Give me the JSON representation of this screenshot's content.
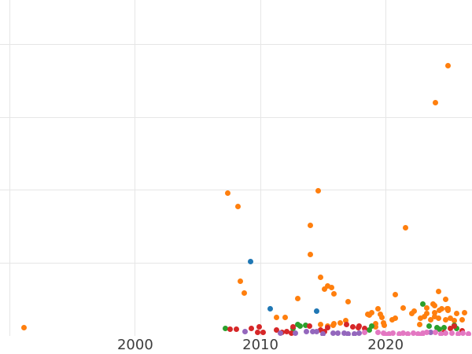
{
  "chart_data": {
    "type": "scatter",
    "title": "",
    "xlabel": "",
    "ylabel": "",
    "xlim": [
      1989.2,
      2026.9
    ],
    "ylim": [
      0,
      4.616
    ],
    "grid": true,
    "legend_position": "none",
    "background_color": "#ffffff",
    "gridline_color": "#e6e6e6",
    "tick_label_color": "#3d3d3d",
    "x_gridlines": [
      1990,
      2000,
      2010,
      2020
    ],
    "y_gridlines": [
      0,
      1,
      2,
      3,
      4
    ],
    "x_ticks": [
      {
        "year": 2000,
        "label": "2000"
      },
      {
        "year": 2010,
        "label": "2010"
      },
      {
        "year": 2020,
        "label": "2020"
      }
    ],
    "series": [
      {
        "name": "series-blue",
        "color": "#1f77b4",
        "points": [
          [
            2009.2,
            1.02
          ],
          [
            2010.8,
            0.37
          ],
          [
            2014.5,
            0.34
          ]
        ]
      },
      {
        "name": "series-orange",
        "color": "#ff7f0e",
        "points": [
          [
            1991.1,
            0.11
          ],
          [
            2025.0,
            3.71
          ],
          [
            2024.0,
            3.2
          ],
          [
            2007.4,
            1.96
          ],
          [
            2008.2,
            1.78
          ],
          [
            2008.4,
            0.75
          ],
          [
            2008.7,
            0.59
          ],
          [
            2013.0,
            0.51
          ],
          [
            2014.6,
            1.99
          ],
          [
            2014.0,
            1.52
          ],
          [
            2014.0,
            1.12
          ],
          [
            2014.8,
            0.81
          ],
          [
            2015.1,
            0.64
          ],
          [
            2015.4,
            0.69
          ],
          [
            2015.7,
            0.67
          ],
          [
            2015.9,
            0.58
          ],
          [
            2017.0,
            0.47
          ],
          [
            2021.6,
            1.49
          ],
          [
            2020.8,
            0.57
          ],
          [
            2024.2,
            0.61
          ],
          [
            2024.8,
            0.5
          ],
          [
            2023.8,
            0.44
          ],
          [
            2021.4,
            0.38
          ],
          [
            2022.3,
            0.34
          ],
          [
            2023.3,
            0.31
          ],
          [
            2024.3,
            0.35
          ],
          [
            2024.9,
            0.37
          ],
          [
            2019.4,
            0.37
          ],
          [
            2023.9,
            0.42
          ],
          [
            2011.3,
            0.25
          ],
          [
            2012.0,
            0.25
          ],
          [
            2014.8,
            0.16
          ],
          [
            2015.4,
            0.13
          ],
          [
            2015.8,
            0.15
          ],
          [
            2015.9,
            0.17
          ],
          [
            2016.4,
            0.18
          ],
          [
            2016.8,
            0.21
          ],
          [
            2018.6,
            0.3
          ],
          [
            2018.9,
            0.32
          ],
          [
            2019.6,
            0.3
          ],
          [
            2018.7,
            0.29
          ],
          [
            2019.2,
            0.17
          ],
          [
            2019.9,
            0.15
          ],
          [
            2019.2,
            0.12
          ],
          [
            2020.5,
            0.22
          ],
          [
            2019.8,
            0.18
          ],
          [
            2020.8,
            0.24
          ],
          [
            2019.7,
            0.25
          ],
          [
            2022.1,
            0.31
          ],
          [
            2022.7,
            0.16
          ],
          [
            2022.8,
            0.24
          ],
          [
            2023.3,
            0.38
          ],
          [
            2023.6,
            0.22
          ],
          [
            2023.9,
            0.32
          ],
          [
            2023.9,
            0.26
          ],
          [
            2024.2,
            0.24
          ],
          [
            2024.5,
            0.37
          ],
          [
            2024.8,
            0.22
          ],
          [
            2025.0,
            0.37
          ],
          [
            2025.2,
            0.24
          ],
          [
            2025.5,
            0.21
          ],
          [
            2025.7,
            0.31
          ],
          [
            2026.1,
            0.22
          ],
          [
            2026.3,
            0.32
          ],
          [
            2023.1,
            0.27
          ],
          [
            2025.0,
            0.35
          ]
        ]
      },
      {
        "name": "series-green",
        "color": "#2ca02c",
        "points": [
          [
            2007.2,
            0.1
          ],
          [
            2012.6,
            0.1
          ],
          [
            2013.0,
            0.16
          ],
          [
            2013.2,
            0.14
          ],
          [
            2013.6,
            0.15
          ],
          [
            2018.7,
            0.08
          ],
          [
            2018.9,
            0.14
          ],
          [
            2023.0,
            0.44
          ],
          [
            2023.5,
            0.13
          ],
          [
            2024.1,
            0.11
          ],
          [
            2024.3,
            0.09
          ],
          [
            2024.7,
            0.11
          ],
          [
            2025.5,
            0.15
          ],
          [
            2025.7,
            0.1
          ]
        ]
      },
      {
        "name": "series-red",
        "color": "#d62728",
        "points": [
          [
            2007.6,
            0.09
          ],
          [
            2008.1,
            0.09
          ],
          [
            2009.3,
            0.1
          ],
          [
            2009.8,
            0.05
          ],
          [
            2010.2,
            0.05
          ],
          [
            2009.9,
            0.12
          ],
          [
            2011.3,
            0.08
          ],
          [
            2011.7,
            0.05
          ],
          [
            2012.1,
            0.06
          ],
          [
            2012.5,
            0.04
          ],
          [
            2012.6,
            0.12
          ],
          [
            2013.9,
            0.13
          ],
          [
            2014.8,
            0.08
          ],
          [
            2015.1,
            0.06
          ],
          [
            2015.4,
            0.11
          ],
          [
            2016.9,
            0.16
          ],
          [
            2017.4,
            0.12
          ],
          [
            2017.8,
            0.11
          ],
          [
            2017.9,
            0.13
          ],
          [
            2018.3,
            0.1
          ],
          [
            2024.7,
            0.05
          ],
          [
            2025.2,
            0.1
          ],
          [
            2025.5,
            0.13
          ],
          [
            2026.1,
            0.07
          ]
        ]
      },
      {
        "name": "series-purple",
        "color": "#9467bd",
        "points": [
          [
            2008.8,
            0.06
          ],
          [
            2011.6,
            0.04
          ],
          [
            2012.8,
            0.04
          ],
          [
            2013.7,
            0.06
          ],
          [
            2014.2,
            0.06
          ],
          [
            2014.5,
            0.06
          ],
          [
            2015.0,
            0.03
          ],
          [
            2015.8,
            0.04
          ],
          [
            2016.2,
            0.04
          ],
          [
            2016.7,
            0.04
          ],
          [
            2017.0,
            0.03
          ],
          [
            2017.5,
            0.03
          ],
          [
            2017.9,
            0.04
          ],
          [
            2023.6,
            0.05
          ]
        ]
      },
      {
        "name": "series-pink",
        "color": "#e377c2",
        "points": [
          [
            2018.3,
            0.05
          ],
          [
            2019.4,
            0.05
          ],
          [
            2019.8,
            0.04
          ],
          [
            2020.0,
            0.02
          ],
          [
            2020.3,
            0.03
          ],
          [
            2020.6,
            0.04
          ],
          [
            2021.1,
            0.03
          ],
          [
            2021.4,
            0.04
          ],
          [
            2021.8,
            0.03
          ],
          [
            2022.2,
            0.04
          ],
          [
            2022.6,
            0.03
          ],
          [
            2022.9,
            0.02
          ],
          [
            2023.0,
            0.04
          ],
          [
            2023.3,
            0.05
          ],
          [
            2024.0,
            0.05
          ],
          [
            2024.4,
            0.03
          ],
          [
            2024.8,
            0.04
          ],
          [
            2025.3,
            0.04
          ],
          [
            2025.8,
            0.03
          ],
          [
            2026.2,
            0.04
          ],
          [
            2026.6,
            0.03
          ]
        ]
      }
    ]
  }
}
